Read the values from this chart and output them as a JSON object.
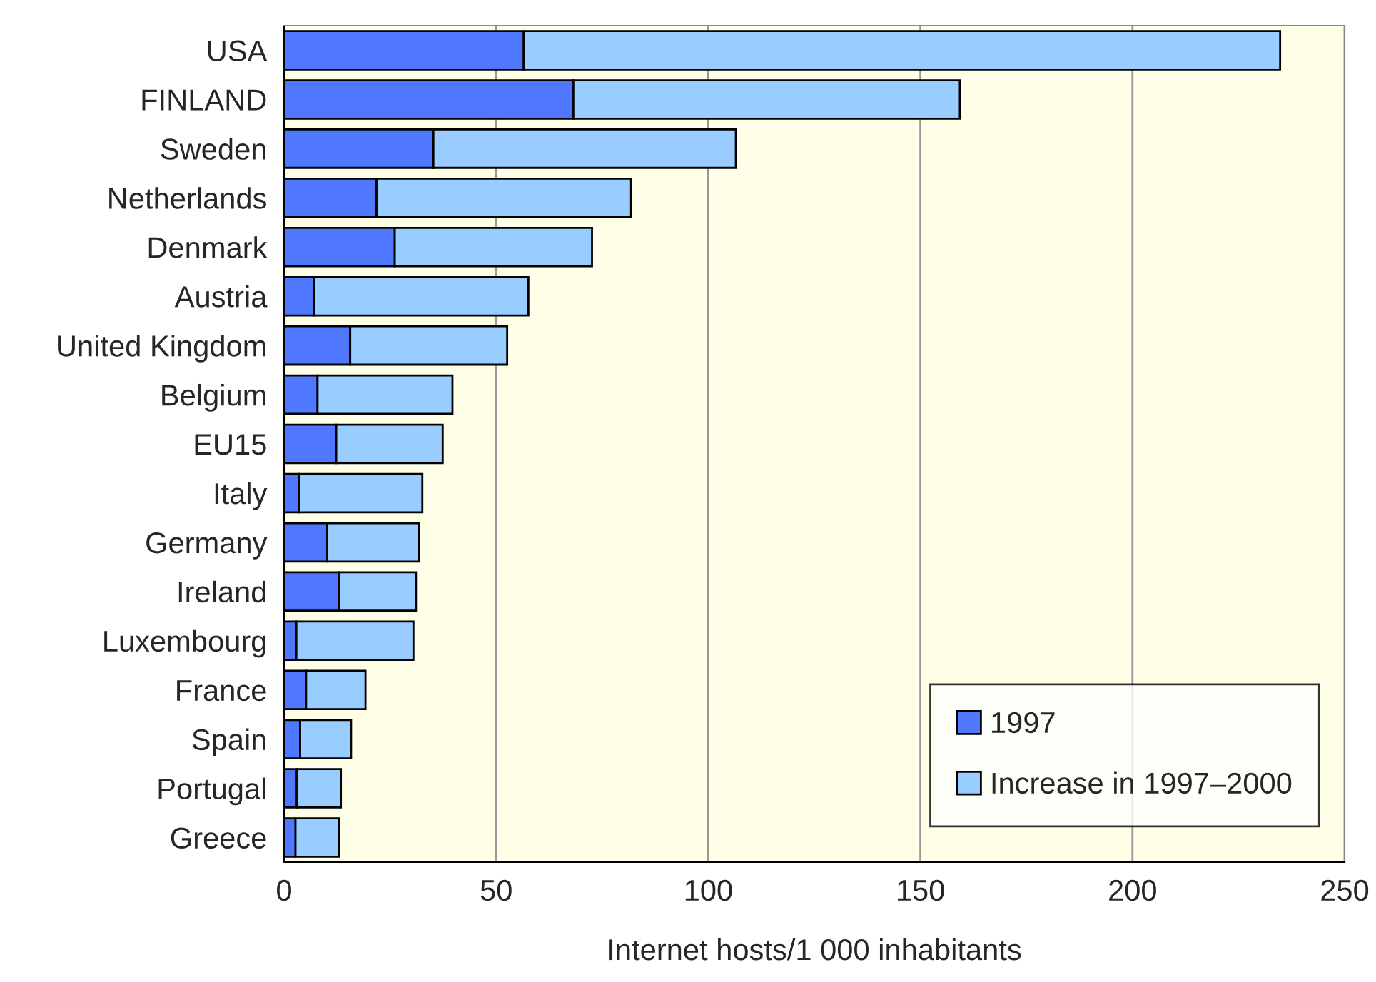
{
  "chart_data": {
    "type": "bar",
    "orientation": "horizontal",
    "stacked": true,
    "xlabel": "Internet hosts/1 000 inhabitants",
    "categories": [
      "USA",
      "FINLAND",
      "Sweden",
      "Netherlands",
      "Denmark",
      "Austria",
      "United Kingdom",
      "Belgium",
      "EU15",
      "Italy",
      "Germany",
      "Ireland",
      "Luxembourg",
      "France",
      "Spain",
      "Portugal",
      "Greece"
    ],
    "series": [
      {
        "name": "1997",
        "color": "#5078ff",
        "values": [
          56.5,
          68.2,
          35.2,
          21.8,
          26.1,
          7.1,
          15.6,
          7.9,
          12.3,
          3.6,
          10.2,
          12.9,
          2.9,
          5.2,
          3.8,
          3.0,
          2.7
        ]
      },
      {
        "name": "Increase in 1997–2000",
        "color": "#99ccff",
        "values": [
          178.3,
          91.1,
          71.3,
          60.0,
          46.5,
          50.5,
          37.0,
          31.8,
          25.1,
          29.0,
          21.6,
          18.2,
          27.6,
          14.0,
          12.0,
          10.4,
          10.3
        ]
      }
    ],
    "xlim": [
      0,
      250
    ],
    "xticks": [
      0,
      50,
      100,
      150,
      200,
      250
    ],
    "grid": "x",
    "legend": "bottom right"
  }
}
